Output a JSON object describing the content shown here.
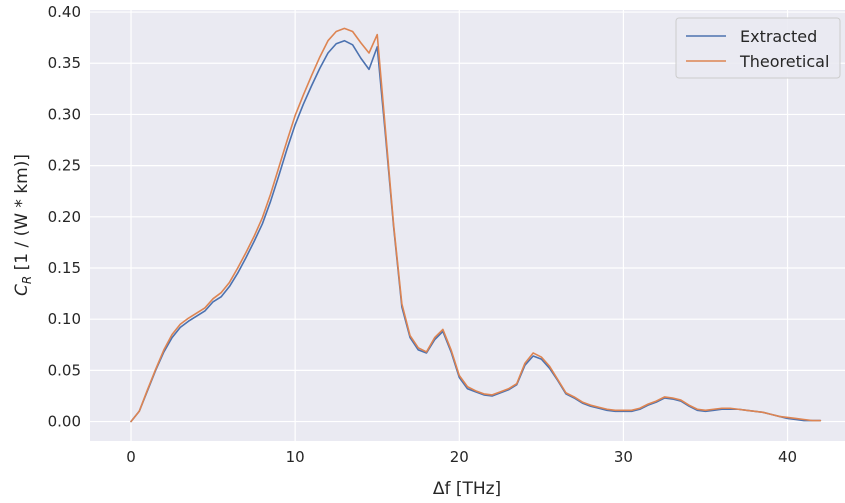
{
  "chart_data": {
    "type": "line",
    "xlabel": "Δf [THz]",
    "ylabel_main": "C",
    "ylabel_sub": "R",
    "ylabel_rest": " [1 / (W * km)]",
    "xlim": [
      -2.5,
      43.5
    ],
    "ylim": [
      -0.019,
      0.402
    ],
    "x_ticks": [
      0,
      10,
      20,
      30,
      40
    ],
    "y_ticks": [
      0.0,
      0.05,
      0.1,
      0.15,
      0.2,
      0.25,
      0.3,
      0.35,
      0.4
    ],
    "grid": true,
    "legend_position": "top-right",
    "colors": {
      "background": "#eaeaf2",
      "grid": "#ffffff",
      "extracted": "#4c72b0",
      "theoretical": "#dd8452"
    },
    "x": [
      0,
      0.5,
      1.0,
      1.5,
      2.0,
      2.5,
      3.0,
      3.5,
      4.0,
      4.5,
      5.0,
      5.5,
      6.0,
      6.5,
      7.0,
      7.5,
      8.0,
      8.5,
      9.0,
      9.5,
      10.0,
      10.5,
      11.0,
      11.5,
      12.0,
      12.5,
      13.0,
      13.5,
      14.0,
      14.5,
      15.0,
      15.5,
      16.0,
      16.5,
      17.0,
      17.5,
      18.0,
      18.5,
      19.0,
      19.5,
      20.0,
      20.5,
      21.0,
      21.5,
      22.0,
      22.5,
      23.0,
      23.5,
      24.0,
      24.5,
      25.0,
      25.5,
      26.0,
      26.5,
      27.0,
      27.5,
      28.0,
      28.5,
      29.0,
      29.5,
      30.0,
      30.5,
      31.0,
      31.5,
      32.0,
      32.5,
      33.0,
      33.5,
      34.0,
      34.5,
      35.0,
      35.5,
      36.0,
      36.5,
      37.0,
      37.5,
      38.0,
      38.5,
      39.0,
      39.5,
      40.0,
      40.5,
      41.0,
      41.5,
      42.0
    ],
    "series": [
      {
        "name": "Extracted",
        "values": [
          0.0,
          0.01,
          0.03,
          0.05,
          0.068,
          0.082,
          0.092,
          0.098,
          0.103,
          0.108,
          0.117,
          0.122,
          0.132,
          0.145,
          0.16,
          0.176,
          0.193,
          0.215,
          0.24,
          0.266,
          0.29,
          0.31,
          0.328,
          0.345,
          0.36,
          0.369,
          0.372,
          0.368,
          0.355,
          0.344,
          0.366,
          0.28,
          0.19,
          0.112,
          0.082,
          0.07,
          0.067,
          0.08,
          0.088,
          0.068,
          0.043,
          0.032,
          0.029,
          0.026,
          0.025,
          0.028,
          0.031,
          0.036,
          0.055,
          0.064,
          0.061,
          0.052,
          0.04,
          0.027,
          0.023,
          0.018,
          0.015,
          0.013,
          0.011,
          0.01,
          0.01,
          0.01,
          0.012,
          0.016,
          0.019,
          0.023,
          0.022,
          0.02,
          0.015,
          0.011,
          0.01,
          0.011,
          0.012,
          0.012,
          0.012,
          0.011,
          0.01,
          0.009,
          0.007,
          0.005,
          0.003,
          0.002,
          0.001,
          0.001,
          0.001
        ]
      },
      {
        "name": "Theoretical",
        "values": [
          0.0,
          0.01,
          0.031,
          0.051,
          0.07,
          0.085,
          0.095,
          0.101,
          0.106,
          0.111,
          0.12,
          0.126,
          0.136,
          0.15,
          0.165,
          0.181,
          0.199,
          0.222,
          0.248,
          0.274,
          0.299,
          0.319,
          0.338,
          0.356,
          0.372,
          0.381,
          0.384,
          0.381,
          0.37,
          0.36,
          0.378,
          0.285,
          0.192,
          0.115,
          0.084,
          0.072,
          0.068,
          0.082,
          0.09,
          0.07,
          0.045,
          0.034,
          0.03,
          0.027,
          0.026,
          0.029,
          0.032,
          0.037,
          0.057,
          0.067,
          0.063,
          0.054,
          0.041,
          0.028,
          0.024,
          0.019,
          0.016,
          0.014,
          0.012,
          0.011,
          0.011,
          0.011,
          0.013,
          0.017,
          0.02,
          0.024,
          0.023,
          0.021,
          0.016,
          0.012,
          0.011,
          0.012,
          0.013,
          0.013,
          0.012,
          0.011,
          0.01,
          0.009,
          0.007,
          0.005,
          0.004,
          0.003,
          0.002,
          0.001,
          0.001
        ]
      }
    ]
  }
}
